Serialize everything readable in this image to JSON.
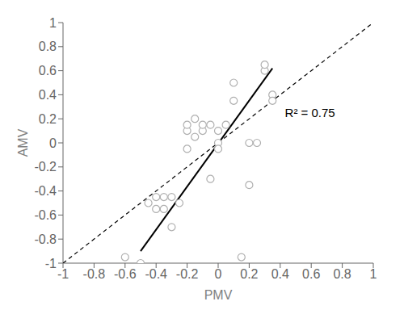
{
  "chart_data": {
    "type": "scatter",
    "xlabel": "PMV",
    "ylabel": "AMV",
    "xlim": [
      -1.0,
      1.0
    ],
    "ylim": [
      -1.0,
      1.0
    ],
    "xticks": [
      -1,
      -0.8,
      -0.6,
      -0.4,
      -0.2,
      0,
      0.2,
      0.4,
      0.6,
      0.8,
      1
    ],
    "yticks": [
      -1,
      -0.8,
      -0.6,
      -0.4,
      -0.2,
      0,
      0.2,
      0.4,
      0.6,
      0.8,
      1
    ],
    "grid": false,
    "series": [
      {
        "type": "line",
        "line_style": "dashed",
        "color": "black",
        "x": [
          -1.0,
          1.0
        ],
        "values": [
          -1.0,
          1.0
        ]
      },
      {
        "type": "line",
        "line_style": "solid",
        "color": "black",
        "x": [
          -0.5,
          0.35
        ],
        "values": [
          -0.9,
          0.62
        ]
      },
      {
        "type": "scatter",
        "marker": "circle",
        "color": "#b0b0b0",
        "x": [
          -0.6,
          -0.5,
          -0.45,
          -0.4,
          -0.4,
          -0.35,
          -0.35,
          -0.3,
          -0.3,
          -0.25,
          -0.2,
          -0.2,
          -0.2,
          -0.15,
          -0.15,
          -0.1,
          -0.1,
          -0.05,
          -0.05,
          0.0,
          0.0,
          0.0,
          0.05,
          0.1,
          0.1,
          0.15,
          0.2,
          0.2,
          0.25,
          0.3,
          0.3,
          0.35,
          0.35
        ],
        "values": [
          -0.95,
          -1.0,
          -0.5,
          -0.55,
          -0.45,
          -0.55,
          -0.45,
          -0.45,
          -0.7,
          -0.5,
          0.1,
          0.15,
          -0.05,
          0.05,
          0.2,
          0.1,
          0.15,
          0.15,
          -0.3,
          0.0,
          -0.05,
          0.1,
          0.15,
          0.5,
          0.35,
          -0.95,
          0.0,
          -0.35,
          0.0,
          0.6,
          0.65,
          0.4,
          0.35
        ]
      }
    ],
    "annotations": [
      {
        "text": "R² = 0.75",
        "x": 0.43,
        "y": 0.25
      }
    ]
  }
}
